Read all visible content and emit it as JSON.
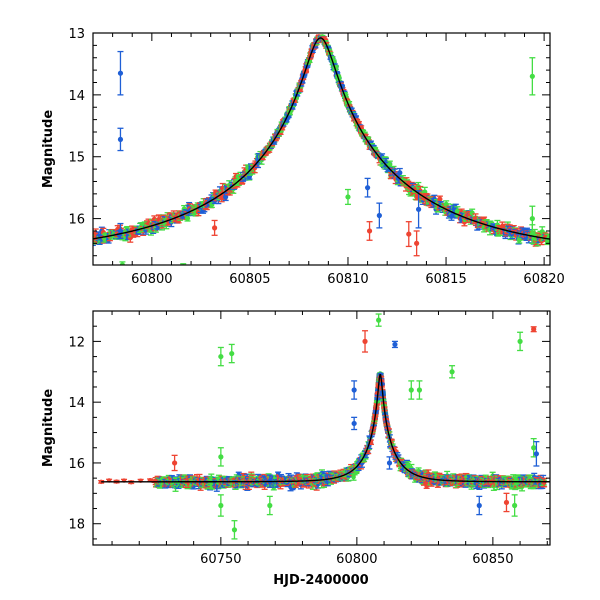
{
  "chart_data": [
    {
      "type": "scatter",
      "title": "",
      "xlabel": "",
      "ylabel": "Magnitude",
      "xlim": [
        60797.0,
        60820.3
      ],
      "ylim": [
        16.75,
        13.0
      ],
      "y_inverted": true,
      "grid": false,
      "xticks": [
        60800,
        60805,
        60810,
        60815,
        60820
      ],
      "yticks": [
        13,
        14,
        15,
        16
      ],
      "colors": {
        "blue": "#1f5fd6",
        "red": "#ee4432",
        "green": "#44dd44",
        "model": "#000000"
      },
      "model_curve": {
        "t0": 60808.6,
        "peak": 13.08,
        "base": 16.62,
        "u0": 0.07,
        "tE": 10.0
      },
      "outliers": [
        {
          "series": "blue",
          "x": 60798.4,
          "y": 13.65,
          "err": 0.35
        },
        {
          "series": "blue",
          "x": 60798.4,
          "y": 14.72,
          "err": 0.18
        },
        {
          "series": "blue",
          "x": 60798.4,
          "y": 16.2,
          "err": 0.12
        },
        {
          "series": "blue",
          "x": 60811.0,
          "y": 15.5,
          "err": 0.15
        },
        {
          "series": "blue",
          "x": 60811.6,
          "y": 15.95,
          "err": 0.2
        },
        {
          "series": "blue",
          "x": 60813.6,
          "y": 15.85,
          "err": 0.3
        },
        {
          "series": "red",
          "x": 60803.2,
          "y": 16.15,
          "err": 0.12
        },
        {
          "series": "red",
          "x": 60811.1,
          "y": 16.2,
          "err": 0.15
        },
        {
          "series": "red",
          "x": 60813.1,
          "y": 16.25,
          "err": 0.2
        },
        {
          "series": "red",
          "x": 60813.5,
          "y": 16.4,
          "err": 0.2
        },
        {
          "series": "green",
          "x": 60819.4,
          "y": 13.7,
          "err": 0.3
        },
        {
          "series": "green",
          "x": 60819.4,
          "y": 16.0,
          "err": 0.2
        },
        {
          "series": "green",
          "x": 60819.4,
          "y": 16.25,
          "err": 0.15
        },
        {
          "series": "green",
          "x": 60810.0,
          "y": 15.65,
          "err": 0.12
        },
        {
          "series": "green",
          "x": 60798.5,
          "y": 16.75,
          "err": 0.05
        },
        {
          "series": "green",
          "x": 60801.6,
          "y": 16.78,
          "err": 0.05
        }
      ]
    },
    {
      "type": "scatter",
      "title": "",
      "xlabel": "HJD-2400000",
      "ylabel": "Magnitude",
      "xlim": [
        60703,
        60871
      ],
      "ylim": [
        18.7,
        11.0
      ],
      "y_inverted": true,
      "grid": false,
      "xticks": [
        60750,
        60800,
        60850
      ],
      "yticks": [
        12,
        14,
        16,
        18
      ],
      "colors": {
        "blue": "#1f5fd6",
        "red": "#ee4432",
        "green": "#44dd44",
        "model": "#000000"
      },
      "model_curve": {
        "t0": 60808.6,
        "peak": 13.08,
        "base": 16.62,
        "u0": 0.07,
        "tE": 10.0
      },
      "outliers": [
        {
          "series": "green",
          "x": 60750,
          "y": 12.5,
          "err": 0.3
        },
        {
          "series": "green",
          "x": 60754,
          "y": 12.4,
          "err": 0.3
        },
        {
          "series": "green",
          "x": 60750,
          "y": 15.8,
          "err": 0.3
        },
        {
          "series": "green",
          "x": 60750,
          "y": 17.4,
          "err": 0.35
        },
        {
          "series": "green",
          "x": 60755,
          "y": 18.2,
          "err": 0.3
        },
        {
          "series": "green",
          "x": 60768,
          "y": 17.4,
          "err": 0.3
        },
        {
          "series": "green",
          "x": 60808,
          "y": 11.3,
          "err": 0.2
        },
        {
          "series": "green",
          "x": 60820,
          "y": 13.6,
          "err": 0.3
        },
        {
          "series": "green",
          "x": 60823,
          "y": 13.6,
          "err": 0.3
        },
        {
          "series": "green",
          "x": 60835,
          "y": 13.0,
          "err": 0.2
        },
        {
          "series": "green",
          "x": 60860,
          "y": 12.0,
          "err": 0.3
        },
        {
          "series": "green",
          "x": 60865,
          "y": 15.5,
          "err": 0.3
        },
        {
          "series": "green",
          "x": 60858,
          "y": 17.4,
          "err": 0.35
        },
        {
          "series": "red",
          "x": 60803,
          "y": 12.0,
          "err": 0.35
        },
        {
          "series": "red",
          "x": 60865,
          "y": 11.6,
          "err": 0.08
        },
        {
          "series": "red",
          "x": 60733,
          "y": 16.0,
          "err": 0.25
        },
        {
          "series": "red",
          "x": 60855,
          "y": 17.3,
          "err": 0.3
        },
        {
          "series": "blue",
          "x": 60814,
          "y": 12.1,
          "err": 0.1
        },
        {
          "series": "blue",
          "x": 60799,
          "y": 13.6,
          "err": 0.3
        },
        {
          "series": "blue",
          "x": 60799,
          "y": 14.7,
          "err": 0.2
        },
        {
          "series": "blue",
          "x": 60812,
          "y": 16.0,
          "err": 0.2
        },
        {
          "series": "blue",
          "x": 60845,
          "y": 17.4,
          "err": 0.3
        },
        {
          "series": "blue",
          "x": 60866,
          "y": 15.7,
          "err": 0.4
        },
        {
          "series": "blue",
          "x": 60768,
          "y": 16.6,
          "err": 0.2
        }
      ]
    }
  ]
}
